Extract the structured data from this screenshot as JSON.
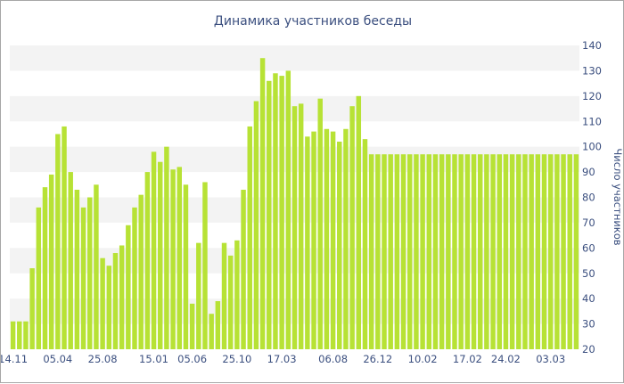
{
  "chart_data": {
    "type": "bar",
    "title": "Динамика участников беседы",
    "ylabel": "Число участников",
    "xlabel": "",
    "ylim": [
      20,
      140
    ],
    "yticks": [
      20,
      30,
      40,
      50,
      60,
      70,
      80,
      90,
      100,
      110,
      120,
      130,
      140
    ],
    "y_axis_side": "right",
    "grid": "alternating horizontal bands",
    "bar_color": "#b7e235",
    "band_color": "#f3f3f3",
    "text_color": "#3b4f7f",
    "x_tick_labels": [
      {
        "label": "14.11",
        "index": 0
      },
      {
        "label": "05.04",
        "index": 7
      },
      {
        "label": "25.08",
        "index": 14
      },
      {
        "label": "15.01",
        "index": 22
      },
      {
        "label": "05.06",
        "index": 28
      },
      {
        "label": "25.10",
        "index": 35
      },
      {
        "label": "17.03",
        "index": 42
      },
      {
        "label": "06.08",
        "index": 50
      },
      {
        "label": "26.12",
        "index": 57
      },
      {
        "label": "10.02",
        "index": 64
      },
      {
        "label": "17.02",
        "index": 71
      },
      {
        "label": "24.02",
        "index": 77
      },
      {
        "label": "03.03",
        "index": 84
      }
    ],
    "values": [
      31,
      31,
      31,
      52,
      76,
      84,
      89,
      105,
      108,
      90,
      83,
      76,
      80,
      85,
      56,
      53,
      58,
      61,
      69,
      76,
      81,
      90,
      98,
      94,
      100,
      91,
      92,
      85,
      38,
      62,
      86,
      34,
      39,
      62,
      57,
      63,
      83,
      108,
      118,
      135,
      126,
      129,
      128,
      130,
      116,
      117,
      104,
      106,
      119,
      107,
      106,
      102,
      107,
      116,
      120,
      103,
      97,
      97,
      97,
      97,
      97,
      97,
      97,
      97,
      97,
      97,
      97,
      97,
      97,
      97,
      97,
      97,
      97,
      97,
      97,
      97,
      97,
      97,
      97,
      97,
      97,
      97,
      97,
      97,
      97,
      97,
      97,
      97,
      97
    ]
  }
}
